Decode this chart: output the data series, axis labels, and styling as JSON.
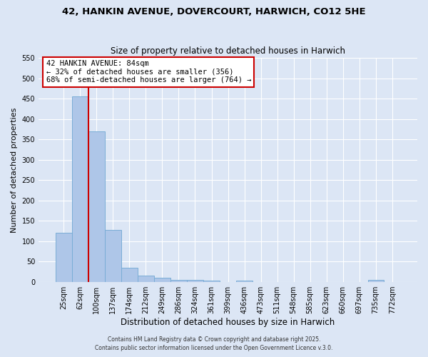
{
  "title1": "42, HANKIN AVENUE, DOVERCOURT, HARWICH, CO12 5HE",
  "title2": "Size of property relative to detached houses in Harwich",
  "xlabel": "Distribution of detached houses by size in Harwich",
  "ylabel": "Number of detached properties",
  "bar_labels": [
    "25sqm",
    "62sqm",
    "100sqm",
    "137sqm",
    "174sqm",
    "212sqm",
    "249sqm",
    "286sqm",
    "324sqm",
    "361sqm",
    "399sqm",
    "436sqm",
    "473sqm",
    "511sqm",
    "548sqm",
    "585sqm",
    "623sqm",
    "660sqm",
    "697sqm",
    "735sqm",
    "772sqm"
  ],
  "bar_values": [
    120,
    455,
    370,
    127,
    35,
    15,
    9,
    5,
    5,
    3,
    0,
    2,
    0,
    0,
    0,
    0,
    0,
    0,
    0,
    5,
    0
  ],
  "bar_color": "#aec6e8",
  "bar_edge_color": "#7aadd6",
  "background_color": "#dce6f5",
  "grid_color": "#ffffff",
  "vline_x": 1.5,
  "vline_color": "#cc0000",
  "annotation_text": "42 HANKIN AVENUE: 84sqm\n← 32% of detached houses are smaller (356)\n68% of semi-detached houses are larger (764) →",
  "annotation_box_color": "#cc0000",
  "ylim": [
    0,
    550
  ],
  "yticks": [
    0,
    50,
    100,
    150,
    200,
    250,
    300,
    350,
    400,
    450,
    500,
    550
  ],
  "footer1": "Contains HM Land Registry data © Crown copyright and database right 2025.",
  "footer2": "Contains public sector information licensed under the Open Government Licence v.3.0."
}
